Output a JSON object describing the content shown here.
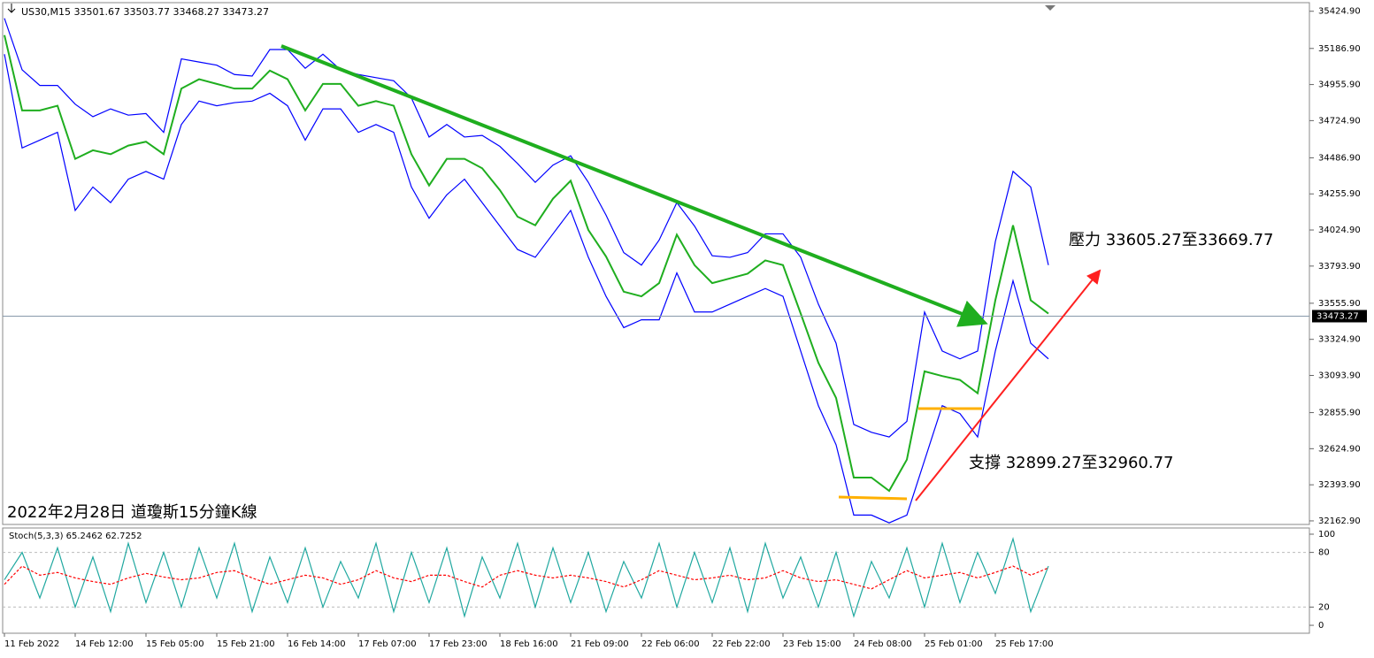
{
  "chart_data": [
    {
      "type": "line",
      "subtitle": "US30,M15  33501.67 33503.77 33468.27 33473.27",
      "title": "2022年2月28日 道瓊斯15分鐘K線",
      "annotations": [
        "壓力 33605.27至33669.77",
        "支撐 32899.27至32960.77"
      ],
      "last_price": 33473.27,
      "categories": [
        "11 Feb 2022",
        null,
        null,
        null,
        "14 Feb 12:00",
        null,
        null,
        null,
        "15 Feb 05:00",
        null,
        null,
        null,
        "15 Feb 21:00",
        null,
        null,
        null,
        "16 Feb 14:00",
        null,
        null,
        null,
        "17 Feb 07:00",
        null,
        null,
        null,
        "17 Feb 23:00",
        null,
        null,
        null,
        "18 Feb 16:00",
        null,
        null,
        null,
        "21 Feb 09:00",
        null,
        null,
        null,
        "22 Feb 06:00",
        null,
        null,
        null,
        "22 Feb 22:00",
        null,
        null,
        null,
        "23 Feb 15:00",
        null,
        null,
        null,
        "24 Feb 08:00",
        null,
        null,
        null,
        "25 Feb 01:00",
        null,
        null,
        null,
        "25 Feb 17:00",
        null,
        null,
        null
      ],
      "series": [
        {
          "color": "#0000ff",
          "values": [
            35380,
            35050,
            34950,
            34950,
            34830,
            34750,
            34800,
            34760,
            34770,
            34650,
            35120,
            35100,
            35080,
            35020,
            35010,
            35180,
            35180,
            35060,
            35150,
            35050,
            35020,
            35000,
            34980,
            34870,
            34620,
            34700,
            34620,
            34630,
            34560,
            34450,
            34330,
            34440,
            34500,
            34330,
            34120,
            33880,
            33800,
            33960,
            34200,
            34050,
            33860,
            33850,
            33880,
            34000,
            34000,
            33850,
            33550,
            33300,
            32780,
            32730,
            32700,
            32800,
            33500,
            33250,
            33200,
            33250,
            33950,
            34400,
            34300,
            33800
          ]
        },
        {
          "color": "#0000ff",
          "values": [
            35150,
            34550,
            34600,
            34650,
            34150,
            34300,
            34200,
            34350,
            34400,
            34350,
            34700,
            34850,
            34820,
            34840,
            34850,
            34900,
            34820,
            34600,
            34800,
            34800,
            34650,
            34700,
            34650,
            34300,
            34100,
            34250,
            34350,
            34200,
            34050,
            33900,
            33850,
            34000,
            34150,
            33850,
            33600,
            33400,
            33450,
            33450,
            33750,
            33500,
            33500,
            33550,
            33600,
            33650,
            33600,
            33250,
            32900,
            32650,
            32200,
            32200,
            32150,
            32200,
            32550,
            32900,
            32850,
            32700,
            33250,
            33700,
            33300,
            33200
          ]
        },
        {
          "color": "#1fae1f",
          "values": [
            35272,
            34790,
            34790,
            34820,
            34480,
            34535,
            34510,
            34565,
            34590,
            34510,
            34930,
            34990,
            34960,
            34930,
            34930,
            35045,
            34990,
            34790,
            34960,
            34960,
            34820,
            34850,
            34820,
            34510,
            34310,
            34480,
            34480,
            34420,
            34280,
            34110,
            34055,
            34225,
            34340,
            34025,
            33855,
            33630,
            33600,
            33685,
            33995,
            33800,
            33685,
            33715,
            33745,
            33830,
            33800,
            33490,
            33175,
            32950,
            32440,
            32440,
            32355,
            32555,
            33120,
            33090,
            33065,
            32980,
            33575,
            34055,
            33575,
            33490
          ]
        }
      ],
      "ylim": [
        32140,
        35480
      ],
      "yticks": [
        {
          "value": 35424.9,
          "label": "35424.90"
        },
        {
          "value": 35186.9,
          "label": "35186.90"
        },
        {
          "value": 34955.9,
          "label": "34955.90"
        },
        {
          "value": 34724.9,
          "label": "34724.90"
        },
        {
          "value": 34486.9,
          "label": "34486.90"
        },
        {
          "value": 34255.9,
          "label": "34255.90"
        },
        {
          "value": 34024.9,
          "label": "34024.90"
        },
        {
          "value": 33793.9,
          "label": "33793.90"
        },
        {
          "value": 33555.9,
          "label": "33555.90"
        },
        {
          "value": 33324.9,
          "label": "33324.90"
        },
        {
          "value": 33093.9,
          "label": "33093.90"
        },
        {
          "value": 32855.9,
          "label": "32855.90"
        },
        {
          "value": 32624.9,
          "label": "32624.90"
        },
        {
          "value": 32393.9,
          "label": "32393.90"
        },
        {
          "value": 32162.9,
          "label": "32162.90"
        }
      ]
    },
    {
      "type": "line",
      "title": "Stoch(5,3,3) 65.2462 62.7252",
      "series": [
        {
          "color": "#20a8a0",
          "values": [
            50,
            80,
            30,
            85,
            20,
            75,
            15,
            90,
            25,
            80,
            20,
            85,
            30,
            90,
            15,
            75,
            25,
            85,
            20,
            70,
            30,
            90,
            15,
            80,
            25,
            85,
            10,
            75,
            30,
            90,
            20,
            85,
            25,
            80,
            15,
            70,
            30,
            90,
            20,
            80,
            25,
            85,
            15,
            90,
            30,
            75,
            20,
            80,
            10,
            70,
            30,
            85,
            20,
            90,
            25,
            80,
            35,
            95,
            15,
            65
          ]
        },
        {
          "color": "#ff0000",
          "dash": true,
          "values": [
            45,
            65,
            55,
            58,
            52,
            48,
            45,
            52,
            57,
            53,
            50,
            52,
            58,
            60,
            52,
            45,
            50,
            55,
            52,
            45,
            50,
            60,
            52,
            48,
            55,
            55,
            48,
            42,
            55,
            60,
            55,
            52,
            55,
            52,
            48,
            42,
            50,
            60,
            55,
            50,
            52,
            55,
            50,
            52,
            60,
            52,
            48,
            50,
            45,
            40,
            50,
            60,
            52,
            55,
            58,
            52,
            58,
            65,
            55,
            63
          ]
        }
      ],
      "ylim": [
        -8.7,
        106.8
      ],
      "yticks": [
        0,
        20,
        80,
        100
      ]
    }
  ]
}
